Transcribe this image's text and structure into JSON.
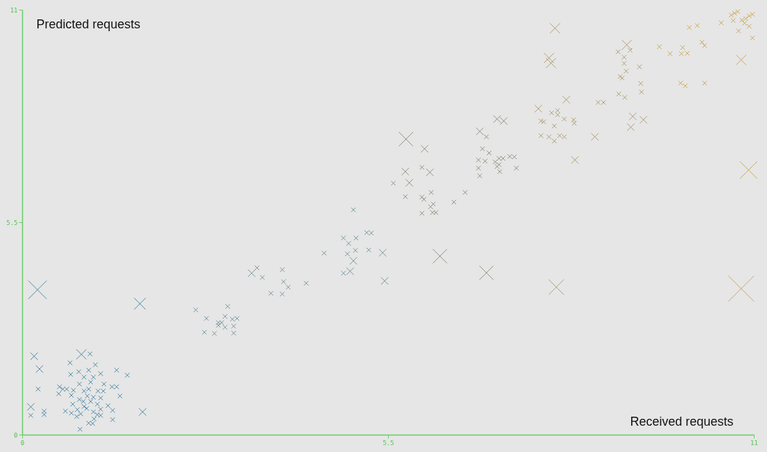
{
  "chart_data": {
    "type": "bubble",
    "xlabel": "Received requests",
    "ylabel": "Predicted requests",
    "xlim": [
      0,
      11
    ],
    "ylim": [
      0,
      11
    ],
    "xticks": [
      0,
      5.5,
      11
    ],
    "yticks": [
      0,
      5.5,
      11
    ],
    "marker": "cross",
    "series": [
      {
        "color": "#3d7f9f",
        "x": [
          0.23,
          1.77,
          0.18,
          0.26,
          0.24,
          0.13,
          0.13,
          0.33,
          0.33,
          0.89,
          1.02,
          1.81,
          0.87,
          0.72,
          1.1,
          1.42,
          1.58,
          0.85,
          1.0,
          0.73,
          1.18,
          0.93,
          1.07,
          0.86,
          1.03,
          1.23,
          1.35,
          1.42,
          0.56,
          0.61,
          0.67,
          0.77,
          0.93,
          1.0,
          1.14,
          1.22,
          0.55,
          0.74,
          0.98,
          1.07,
          1.18,
          1.47,
          0.86,
          0.92,
          1.03,
          0.76,
          1.13,
          1.29,
          0.97,
          0.83,
          1.18,
          0.65,
          1.07,
          1.36,
          0.74,
          0.88,
          1.13,
          0.82,
          1.08,
          1.36,
          1.0,
          1.06,
          1.18,
          0.93
        ],
        "values": [
          3.75,
          3.39,
          2.03,
          1.7,
          1.18,
          0.72,
          0.5,
          0.61,
          0.52,
          2.08,
          2.09,
          0.59,
          0.14,
          1.86,
          1.81,
          1.67,
          1.54,
          1.63,
          1.67,
          1.56,
          1.58,
          1.49,
          1.49,
          1.31,
          1.36,
          1.31,
          1.24,
          1.24,
          1.24,
          1.18,
          1.18,
          1.15,
          1.13,
          1.18,
          1.13,
          1.13,
          1.06,
          1.02,
          1.0,
          0.97,
          0.95,
          1.0,
          0.91,
          0.86,
          0.86,
          0.79,
          0.79,
          0.75,
          0.68,
          0.65,
          0.66,
          0.61,
          0.59,
          0.63,
          0.56,
          0.54,
          0.52,
          0.47,
          0.41,
          0.39,
          0.3,
          0.29,
          0.5,
          0.73
        ],
        "sizes": [
          0.5,
          0.2,
          0.08,
          0.08,
          0.03,
          0.08,
          0.03,
          0.03,
          0.03,
          0.15,
          0.03,
          0.08,
          0.03,
          0.03,
          0.03,
          0.03,
          0.03,
          0.03,
          0.03,
          0.03,
          0.03,
          0.03,
          0.03,
          0.03,
          0.03,
          0.03,
          0.03,
          0.03,
          0.03,
          0.03,
          0.03,
          0.03,
          0.03,
          0.03,
          0.03,
          0.03,
          0.03,
          0.03,
          0.03,
          0.03,
          0.03,
          0.03,
          0.03,
          0.03,
          0.03,
          0.03,
          0.03,
          0.03,
          0.03,
          0.03,
          0.03,
          0.03,
          0.03,
          0.03,
          0.03,
          0.03,
          0.03,
          0.03,
          0.03,
          0.03,
          0.03,
          0.03,
          0.03,
          0.03
        ]
      },
      {
        "color": "#6f8c94",
        "x": [
          2.61,
          3.09,
          2.77,
          3.05,
          3.16,
          3.23,
          2.95,
          3.0,
          2.95,
          3.05,
          3.18,
          2.74,
          2.89,
          3.18,
          3.45,
          3.53,
          3.61,
          3.91,
          3.93,
          4.0,
          3.74,
          3.91,
          4.27,
          4.54,
          4.83,
          5.02,
          4.91,
          5.18,
          5.25,
          5.01,
          4.89,
          5.21,
          4.98,
          4.83,
          4.93,
          5.42,
          5.45,
          4.98
        ],
        "values": [
          3.23,
          3.32,
          3.01,
          3.06,
          2.99,
          3.01,
          2.9,
          2.9,
          2.83,
          2.78,
          2.81,
          2.65,
          2.62,
          2.63,
          4.18,
          4.32,
          4.07,
          4.27,
          3.96,
          3.82,
          3.66,
          3.64,
          3.92,
          4.7,
          5.09,
          5.09,
          4.95,
          5.23,
          5.22,
          4.77,
          4.68,
          4.78,
          4.5,
          4.18,
          4.23,
          4.71,
          3.98,
          5.82
        ],
        "sizes": [
          0.03,
          0.03,
          0.03,
          0.03,
          0.03,
          0.03,
          0.03,
          0.03,
          0.03,
          0.03,
          0.03,
          0.03,
          0.03,
          0.03,
          0.08,
          0.03,
          0.03,
          0.03,
          0.03,
          0.03,
          0.03,
          0.03,
          0.03,
          0.03,
          0.03,
          0.03,
          0.03,
          0.03,
          0.03,
          0.03,
          0.03,
          0.03,
          0.08,
          0.03,
          0.08,
          0.08,
          0.08,
          0.03
        ]
      },
      {
        "color": "#8a8878",
        "x": [
          6.28,
          5.77,
          6.05,
          6.01,
          6.13,
          5.76,
          5.82,
          5.58,
          6.15,
          5.76,
          6.01,
          6.04,
          6.14,
          6.18,
          6.01,
          6.17,
          6.22,
          6.49,
          6.66,
          6.98,
          6.88,
          6.98,
          6.92,
          7.02,
          6.86,
          6.96,
          7.11,
          7.17,
          7.23,
          7.14,
          7.17,
          6.86,
          7.33,
          7.4,
          7.43,
          7.18,
          6.88,
          7.14,
          7.24
        ],
        "values": [
          4.62,
          7.65,
          7.4,
          6.92,
          6.79,
          6.81,
          6.52,
          6.51,
          6.27,
          6.16,
          6.15,
          6.09,
          5.9,
          5.97,
          5.73,
          5.75,
          5.75,
          6.02,
          6.27,
          4.19,
          7.85,
          7.71,
          7.4,
          7.29,
          7.11,
          7.08,
          7.06,
          7.15,
          7.15,
          6.94,
          6.99,
          6.9,
          7.2,
          7.19,
          6.9,
          6.81,
          6.7,
          8.17,
          8.12
        ],
        "sizes": [
          0.3,
          0.3,
          0.08,
          0.03,
          0.08,
          0.08,
          0.08,
          0.03,
          0.03,
          0.03,
          0.03,
          0.03,
          0.03,
          0.03,
          0.03,
          0.03,
          0.03,
          0.03,
          0.03,
          0.3,
          0.08,
          0.03,
          0.03,
          0.03,
          0.03,
          0.03,
          0.03,
          0.03,
          0.03,
          0.03,
          0.03,
          0.03,
          0.03,
          0.03,
          0.03,
          0.03,
          0.03,
          0.08,
          0.08
        ]
      },
      {
        "color": "#a89868",
        "x": [
          8.01,
          7.92,
          7.95,
          7.76,
          7.96,
          8.05,
          8.05,
          8.18,
          7.8,
          7.84,
          8.0,
          8.15,
          8.29,
          8.3,
          7.8,
          7.92,
          8.0,
          8.08,
          8.15,
          8.61,
          8.31,
          8.66,
          8.74,
          8.03,
          9.09,
          9.14,
          8.96,
          9.05,
          9.05,
          9.08,
          8.99,
          9.02,
          9.28,
          9.3,
          9.31,
          8.97,
          9.06,
          9.18,
          9.34,
          9.15
        ],
        "values": [
          10.52,
          9.75,
          9.62,
          8.44,
          8.33,
          8.39,
          8.28,
          8.67,
          8.12,
          8.1,
          7.99,
          8.17,
          8.15,
          8.06,
          7.74,
          7.71,
          7.6,
          7.74,
          7.71,
          7.71,
          7.11,
          8.6,
          8.6,
          3.82,
          10.09,
          9.95,
          9.91,
          9.77,
          9.61,
          9.41,
          9.27,
          9.23,
          9.52,
          9.09,
          8.87,
          8.82,
          8.73,
          8.24,
          8.15,
          7.96
        ],
        "sizes": [
          0.15,
          0.15,
          0.15,
          0.08,
          0.03,
          0.03,
          0.03,
          0.08,
          0.03,
          0.03,
          0.03,
          0.03,
          0.03,
          0.03,
          0.03,
          0.03,
          0.03,
          0.03,
          0.03,
          0.08,
          0.08,
          0.03,
          0.03,
          0.35,
          0.15,
          0.03,
          0.03,
          0.03,
          0.03,
          0.03,
          0.03,
          0.03,
          0.03,
          0.03,
          0.03,
          0.03,
          0.03,
          0.08,
          0.08,
          0.08
        ]
      },
      {
        "color": "#c9a24a",
        "x": [
          10.92,
          9.58,
          9.74,
          9.91,
          10.0,
          9.93,
          10.03,
          10.15,
          10.22,
          10.26,
          9.9,
          9.97,
          10.26,
          10.51,
          10.66,
          10.71,
          10.76,
          10.69,
          10.82,
          10.88,
          10.93,
          10.98,
          10.86,
          10.93,
          10.77,
          10.98,
          10.81,
          10.81
        ],
        "values": [
          6.85,
          10.04,
          9.86,
          9.86,
          9.87,
          10.02,
          10.54,
          10.59,
          10.16,
          10.07,
          9.1,
          9.03,
          9.1,
          10.66,
          10.86,
          10.91,
          10.95,
          10.72,
          10.73,
          10.77,
          10.84,
          10.88,
          10.65,
          10.57,
          10.45,
          10.27,
          9.7,
          3.78
        ],
        "sizes": [
          0.45,
          0.03,
          0.03,
          0.03,
          0.03,
          0.03,
          0.03,
          0.03,
          0.03,
          0.03,
          0.03,
          0.03,
          0.03,
          0.03,
          0.03,
          0.03,
          0.03,
          0.03,
          0.03,
          0.03,
          0.03,
          0.03,
          0.03,
          0.03,
          0.03,
          0.03,
          0.15,
          1
        ]
      }
    ]
  }
}
